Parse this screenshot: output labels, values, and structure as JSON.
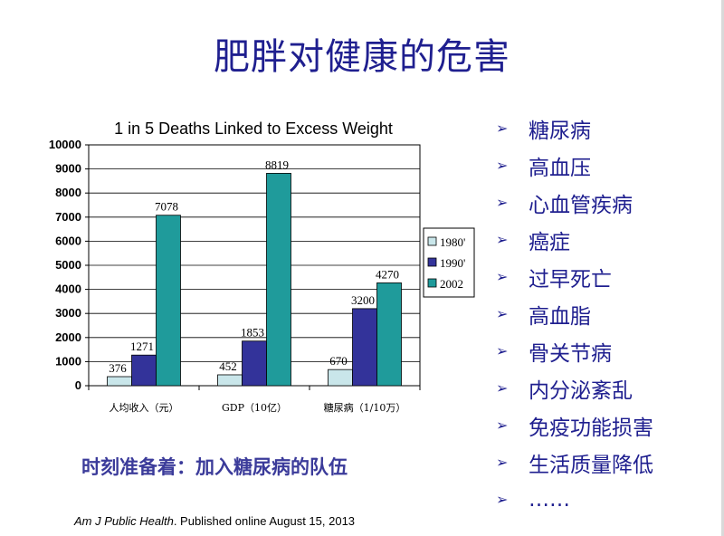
{
  "slide": {
    "title": "肥胖对健康的危害",
    "tagline": "时刻准备着：加入糖尿病的队伍",
    "citation_journal": "Am J Public Health",
    "citation_rest": ". Published online August 15, 2013",
    "bullets": [
      "糖尿病",
      "高血压",
      "心血管疾病",
      "癌症",
      "过早死亡",
      "高血脂",
      "骨关节病",
      "内分泌紊乱",
      "免疫功能损害",
      "生活质量降低",
      "……"
    ],
    "colors": {
      "title": "#1f1f8f",
      "tagline": "#3b3b9a"
    }
  },
  "chart_data": {
    "type": "bar",
    "title": "1 in 5 Deaths Linked to Excess Weight",
    "categories": [
      "人均收入（元）",
      "GDP（10亿）",
      "糖尿病（1/10万）"
    ],
    "series": [
      {
        "name": "1980'",
        "values": [
          376,
          452,
          670
        ],
        "color": "#c9e6ea"
      },
      {
        "name": "1990'",
        "values": [
          1271,
          1853,
          3200
        ],
        "color": "#33339a"
      },
      {
        "name": "2002",
        "values": [
          7078,
          8819,
          4270
        ],
        "color": "#1f9b9b"
      }
    ],
    "ylim": [
      0,
      10000
    ],
    "yticks": [
      0,
      1000,
      2000,
      3000,
      4000,
      5000,
      6000,
      7000,
      8000,
      9000,
      10000
    ],
    "grid": true,
    "legend_position": "right"
  }
}
